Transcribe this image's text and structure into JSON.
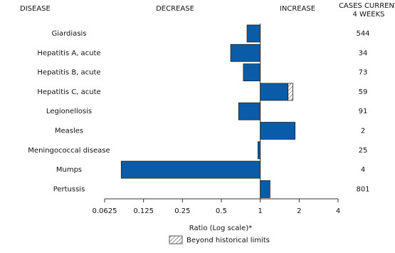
{
  "chart_data": {
    "type": "bar",
    "orientation": "horizontal",
    "log_scale": true,
    "headers": {
      "disease": "DISEASE",
      "decrease": "DECREASE",
      "increase": "INCREASE",
      "cases": [
        "CASES CURRENT",
        "4 WEEKS"
      ]
    },
    "categories": [
      "Giardiasis",
      "Hepatitis A, acute",
      "Hepatitis B, acute",
      "Hepatitis C, acute",
      "Legionellosis",
      "Measles",
      "Meningococcal disease",
      "Mumps",
      "Pertussis"
    ],
    "values": [
      0.79,
      0.59,
      0.74,
      1.79,
      0.68,
      1.86,
      0.96,
      0.084,
      1.19
    ],
    "historical_limits": [
      null,
      null,
      null,
      1.64,
      null,
      null,
      null,
      null,
      null
    ],
    "cases": [
      544,
      34,
      73,
      59,
      91,
      2,
      25,
      4,
      801
    ],
    "color": "#0a5ca8",
    "xlim": [
      0.0625,
      4
    ],
    "xticks": [
      0.0625,
      0.125,
      0.25,
      0.5,
      1,
      2,
      4
    ],
    "xlabel": "Ratio (Log scale)*",
    "legend": "Beyond historical limits"
  }
}
